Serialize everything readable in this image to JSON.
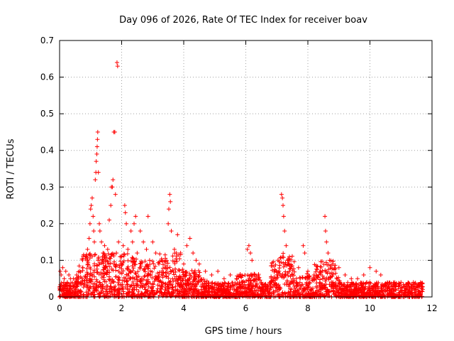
{
  "chart_data": {
    "type": "scatter",
    "title": "Day 096 of 2026, Rate Of TEC Index for receiver boav",
    "xlabel": "GPS time / hours",
    "ylabel": "ROTI / TECUs",
    "xlim": [
      0,
      12
    ],
    "ylim": [
      0,
      0.7
    ],
    "xticks": [
      "0",
      "2",
      "4",
      "6",
      "8",
      "10",
      "12"
    ],
    "yticks": [
      "0",
      "0.1",
      "0.2",
      "0.3",
      "0.4",
      "0.5",
      "0.6",
      "0.7"
    ],
    "grid": true,
    "marker": "+",
    "color": "#ff0000",
    "x_data_range": [
      0,
      11.7
    ],
    "series": [
      {
        "points": [
          [
            0.02,
            0.07
          ],
          [
            0.05,
            0.06
          ],
          [
            0.1,
            0.08
          ],
          [
            0.15,
            0.05
          ],
          [
            0.2,
            0.07
          ],
          [
            0.25,
            0.04
          ],
          [
            0.3,
            0.06
          ],
          [
            0.35,
            0.05
          ],
          [
            0.45,
            0.05
          ],
          [
            0.55,
            0.06
          ],
          [
            0.65,
            0.07
          ],
          [
            0.75,
            0.08
          ],
          [
            0.85,
            0.11
          ],
          [
            0.9,
            0.13
          ],
          [
            0.95,
            0.16
          ],
          [
            0.98,
            0.2
          ],
          [
            1.0,
            0.24
          ],
          [
            1.02,
            0.25
          ],
          [
            1.05,
            0.27
          ],
          [
            1.08,
            0.22
          ],
          [
            1.1,
            0.18
          ],
          [
            1.12,
            0.15
          ],
          [
            1.15,
            0.32
          ],
          [
            1.17,
            0.34
          ],
          [
            1.18,
            0.37
          ],
          [
            1.2,
            0.39
          ],
          [
            1.21,
            0.41
          ],
          [
            1.22,
            0.43
          ],
          [
            1.23,
            0.45
          ],
          [
            1.25,
            0.34
          ],
          [
            1.28,
            0.2
          ],
          [
            1.3,
            0.18
          ],
          [
            1.35,
            0.15
          ],
          [
            1.4,
            0.12
          ],
          [
            1.45,
            0.14
          ],
          [
            1.5,
            0.1
          ],
          [
            1.55,
            0.13
          ],
          [
            1.6,
            0.21
          ],
          [
            1.65,
            0.25
          ],
          [
            1.67,
            0.3
          ],
          [
            1.7,
            0.3
          ],
          [
            1.72,
            0.32
          ],
          [
            1.75,
            0.45
          ],
          [
            1.78,
            0.45
          ],
          [
            1.8,
            0.28
          ],
          [
            1.83,
            0.12
          ],
          [
            1.85,
            0.64
          ],
          [
            1.87,
            0.63
          ],
          [
            1.9,
            0.15
          ],
          [
            1.95,
            0.11
          ],
          [
            2.0,
            0.09
          ],
          [
            2.05,
            0.14
          ],
          [
            2.1,
            0.25
          ],
          [
            2.12,
            0.23
          ],
          [
            2.15,
            0.2
          ],
          [
            2.2,
            0.13
          ],
          [
            2.3,
            0.18
          ],
          [
            2.35,
            0.15
          ],
          [
            2.4,
            0.2
          ],
          [
            2.45,
            0.22
          ],
          [
            2.5,
            0.12
          ],
          [
            2.6,
            0.18
          ],
          [
            2.7,
            0.15
          ],
          [
            2.8,
            0.13
          ],
          [
            2.85,
            0.22
          ],
          [
            2.9,
            0.1
          ],
          [
            3.0,
            0.15
          ],
          [
            3.1,
            0.12
          ],
          [
            3.2,
            0.09
          ],
          [
            3.3,
            0.1
          ],
          [
            3.4,
            0.08
          ],
          [
            3.5,
            0.2
          ],
          [
            3.52,
            0.24
          ],
          [
            3.55,
            0.28
          ],
          [
            3.57,
            0.26
          ],
          [
            3.6,
            0.18
          ],
          [
            3.7,
            0.13
          ],
          [
            3.8,
            0.17
          ],
          [
            3.9,
            0.12
          ],
          [
            4.0,
            0.09
          ],
          [
            4.1,
            0.14
          ],
          [
            4.2,
            0.16
          ],
          [
            4.3,
            0.12
          ],
          [
            4.4,
            0.1
          ],
          [
            4.5,
            0.09
          ],
          [
            4.7,
            0.07
          ],
          [
            4.9,
            0.06
          ],
          [
            5.1,
            0.07
          ],
          [
            5.3,
            0.05
          ],
          [
            5.5,
            0.06
          ],
          [
            5.7,
            0.05
          ],
          [
            5.9,
            0.04
          ],
          [
            6.05,
            0.13
          ],
          [
            6.1,
            0.14
          ],
          [
            6.15,
            0.12
          ],
          [
            6.2,
            0.1
          ],
          [
            6.3,
            0.05
          ],
          [
            6.5,
            0.04
          ],
          [
            6.8,
            0.04
          ],
          [
            7.0,
            0.05
          ],
          [
            7.15,
            0.28
          ],
          [
            7.18,
            0.27
          ],
          [
            7.2,
            0.25
          ],
          [
            7.22,
            0.22
          ],
          [
            7.25,
            0.18
          ],
          [
            7.3,
            0.14
          ],
          [
            7.35,
            0.1
          ],
          [
            7.5,
            0.06
          ],
          [
            7.7,
            0.08
          ],
          [
            7.85,
            0.14
          ],
          [
            7.9,
            0.12
          ],
          [
            8.0,
            0.07
          ],
          [
            8.2,
            0.06
          ],
          [
            8.4,
            0.07
          ],
          [
            8.55,
            0.22
          ],
          [
            8.57,
            0.18
          ],
          [
            8.6,
            0.15
          ],
          [
            8.65,
            0.12
          ],
          [
            8.7,
            0.1
          ],
          [
            8.8,
            0.09
          ],
          [
            9.0,
            0.08
          ],
          [
            9.2,
            0.06
          ],
          [
            9.4,
            0.05
          ],
          [
            9.6,
            0.05
          ],
          [
            9.8,
            0.06
          ],
          [
            10.0,
            0.08
          ],
          [
            10.2,
            0.07
          ],
          [
            10.35,
            0.06
          ],
          [
            10.5,
            0.03
          ],
          [
            10.8,
            0.03
          ],
          [
            11.0,
            0.04
          ],
          [
            11.2,
            0.03
          ],
          [
            11.4,
            0.04
          ],
          [
            11.6,
            0.03
          ],
          [
            11.7,
            0.02
          ]
        ]
      }
    ]
  }
}
